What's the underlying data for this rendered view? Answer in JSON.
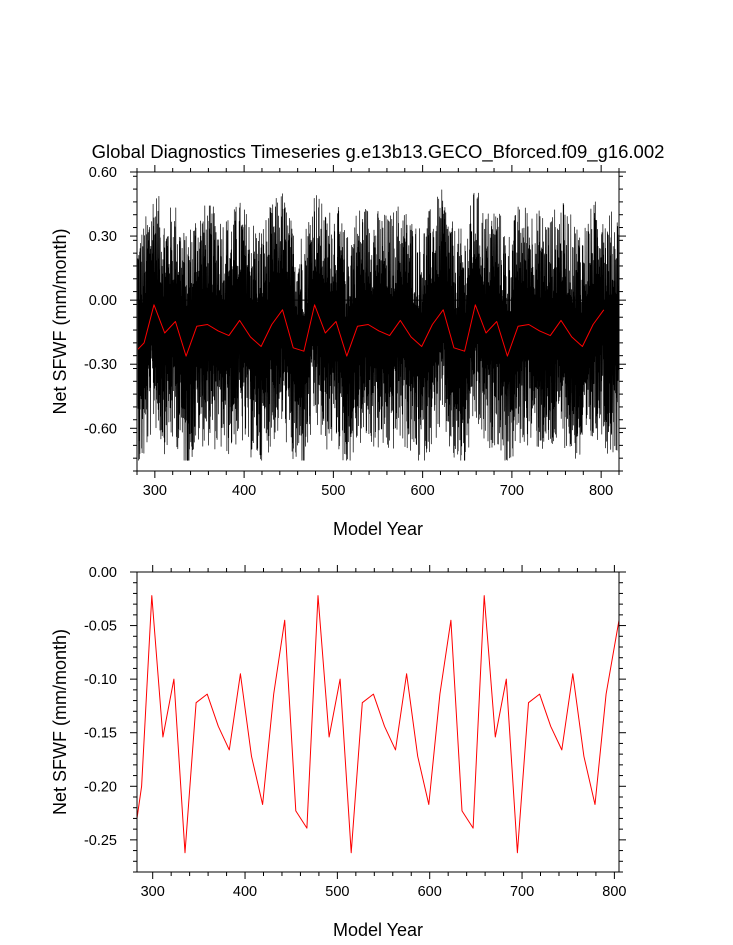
{
  "title": "Global Diagnostics Timeseries g.e13b13.GECO_Bforced.f09_g16.002",
  "chart_data": [
    {
      "type": "line",
      "xlabel": "Model Year",
      "ylabel": "Net SFWF (mm/month)",
      "xlim": [
        280,
        820
      ],
      "ylim": [
        -0.8,
        0.6
      ],
      "x_ticks": [
        "300",
        "400",
        "500",
        "600",
        "700",
        "800"
      ],
      "x_tick_values": [
        300,
        400,
        500,
        600,
        700,
        800
      ],
      "y_ticks": [
        "-0.60",
        "-0.30",
        "0.00",
        "0.30",
        "0.60"
      ],
      "y_tick_values": [
        -0.6,
        -0.3,
        0.0,
        0.3,
        0.6
      ],
      "reference_line": 0.0,
      "grid": false,
      "series": [
        {
          "color": "#000000",
          "description": "monthly values, year 281 to 820",
          "x_start": 281,
          "x_end": 820,
          "values_min": -0.75,
          "values_max": 0.57
        },
        {
          "color": "#ff0000",
          "description": "annual means",
          "x": [
            281,
            288,
            299,
            311,
            323,
            335,
            347,
            359,
            371,
            383,
            395,
            407,
            419,
            431,
            443,
            455,
            467,
            479,
            491,
            503,
            515,
            527,
            539,
            551,
            563,
            575,
            587,
            599,
            611,
            623,
            635,
            647,
            659,
            671,
            683,
            695,
            707,
            719,
            731,
            743,
            755,
            767,
            779,
            791,
            803
          ],
          "y": [
            -0.23,
            -0.2,
            -0.022,
            -0.154,
            -0.1,
            -0.262,
            -0.122,
            -0.114,
            -0.144,
            -0.166,
            -0.095,
            -0.172,
            -0.217,
            -0.114,
            -0.045,
            -0.223,
            -0.239,
            -0.022,
            -0.154,
            -0.1,
            -0.262,
            -0.122,
            -0.114,
            -0.144,
            -0.166,
            -0.095,
            -0.172,
            -0.217,
            -0.114,
            -0.045,
            -0.223,
            -0.239,
            -0.022,
            -0.154,
            -0.1,
            -0.262,
            -0.122,
            -0.114,
            -0.144,
            -0.166,
            -0.095,
            -0.172,
            -0.217,
            -0.114,
            -0.045
          ]
        }
      ]
    },
    {
      "type": "line",
      "xlabel": "Model Year",
      "ylabel": "Net SFWF (mm/month)",
      "xlim": [
        283,
        805
      ],
      "ylim": [
        -0.28,
        0.0
      ],
      "x_ticks": [
        "300",
        "400",
        "500",
        "600",
        "700",
        "800"
      ],
      "x_tick_values": [
        300,
        400,
        500,
        600,
        700,
        800
      ],
      "y_ticks": [
        "-0.25",
        "-0.20",
        "-0.15",
        "-0.10",
        "-0.05",
        "0.00"
      ],
      "y_tick_values": [
        -0.25,
        -0.2,
        -0.15,
        -0.1,
        -0.05,
        0.0
      ],
      "grid": false,
      "series": [
        {
          "color": "#ff0000",
          "x": [
            283,
            288,
            299,
            311,
            323,
            335,
            347,
            359,
            371,
            383,
            395,
            407,
            419,
            431,
            443,
            455,
            467,
            479,
            491,
            503,
            515,
            527,
            539,
            551,
            563,
            575,
            587,
            599,
            611,
            623,
            635,
            647,
            659,
            671,
            683,
            695,
            707,
            719,
            731,
            743,
            755,
            767,
            779,
            791,
            805
          ],
          "y": [
            -0.23,
            -0.2,
            -0.022,
            -0.154,
            -0.1,
            -0.262,
            -0.122,
            -0.114,
            -0.144,
            -0.166,
            -0.095,
            -0.172,
            -0.217,
            -0.114,
            -0.045,
            -0.223,
            -0.239,
            -0.022,
            -0.154,
            -0.1,
            -0.262,
            -0.122,
            -0.114,
            -0.144,
            -0.166,
            -0.095,
            -0.172,
            -0.217,
            -0.114,
            -0.045,
            -0.223,
            -0.239,
            -0.022,
            -0.154,
            -0.1,
            -0.262,
            -0.122,
            -0.114,
            -0.144,
            -0.166,
            -0.095,
            -0.172,
            -0.217,
            -0.114,
            -0.045
          ]
        }
      ]
    }
  ]
}
